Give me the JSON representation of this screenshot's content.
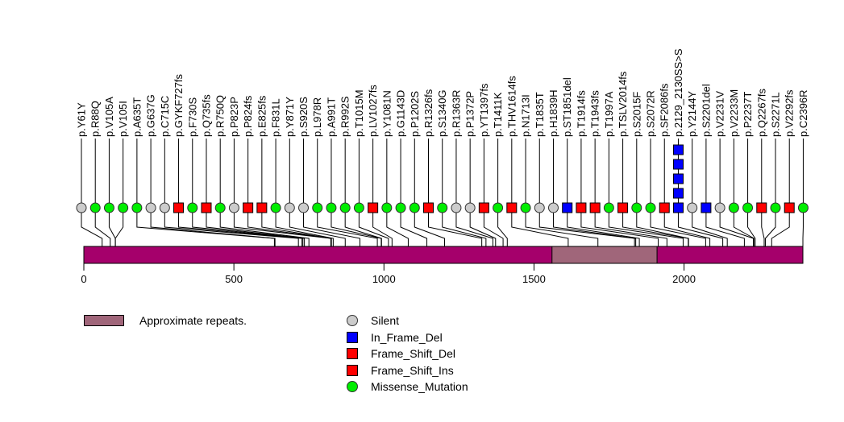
{
  "chart_data": {
    "type": "lollipop",
    "title": "",
    "xlabel": "",
    "ylabel": "",
    "protein_length": 2396,
    "xlim": [
      0,
      2396
    ],
    "x_ticks": [
      0,
      500,
      1000,
      1500,
      2000
    ],
    "x_tick_labels": [
      "0",
      "500",
      "1000",
      "1500",
      "2000"
    ],
    "domains": [
      {
        "name": "Approximate repeats.",
        "start": 1560,
        "end": 1910,
        "color": "#a0667a"
      }
    ],
    "protein_color": "#a5006b",
    "mutation_types": {
      "Silent": {
        "shape": "circle",
        "color": "#cccccc"
      },
      "In_Frame_Del": {
        "shape": "square",
        "color": "#0000ff"
      },
      "Frame_Shift_Del": {
        "shape": "square",
        "color": "#ff0000"
      },
      "Frame_Shift_Ins": {
        "shape": "square",
        "color": "#ff0000"
      },
      "Missense_Mutation": {
        "shape": "circle",
        "color": "#00ee00"
      }
    },
    "mutations": [
      {
        "label": "p.Y61Y",
        "pos": 61,
        "type": "Silent",
        "count": 1
      },
      {
        "label": "p.R88Q",
        "pos": 88,
        "type": "Missense_Mutation",
        "count": 1
      },
      {
        "label": "p.V105A",
        "pos": 105,
        "type": "Missense_Mutation",
        "count": 1
      },
      {
        "label": "p.V105I",
        "pos": 105,
        "type": "Missense_Mutation",
        "count": 1
      },
      {
        "label": "p.A635T",
        "pos": 635,
        "type": "Missense_Mutation",
        "count": 1
      },
      {
        "label": "p.G637G",
        "pos": 637,
        "type": "Silent",
        "count": 1
      },
      {
        "label": "p.C715C",
        "pos": 715,
        "type": "Silent",
        "count": 1
      },
      {
        "label": "p.GYKF727fs",
        "pos": 727,
        "type": "Frame_Shift_Del",
        "count": 1
      },
      {
        "label": "p.F730S",
        "pos": 730,
        "type": "Missense_Mutation",
        "count": 1
      },
      {
        "label": "p.Q735fs",
        "pos": 735,
        "type": "Frame_Shift_Del",
        "count": 1
      },
      {
        "label": "p.R750Q",
        "pos": 750,
        "type": "Missense_Mutation",
        "count": 1
      },
      {
        "label": "p.P823P",
        "pos": 823,
        "type": "Silent",
        "count": 1
      },
      {
        "label": "p.P824fs",
        "pos": 824,
        "type": "Frame_Shift_Del",
        "count": 1
      },
      {
        "label": "p.E825fs",
        "pos": 825,
        "type": "Frame_Shift_Del",
        "count": 1
      },
      {
        "label": "p.F831L",
        "pos": 831,
        "type": "Missense_Mutation",
        "count": 1
      },
      {
        "label": "p.Y871Y",
        "pos": 871,
        "type": "Silent",
        "count": 1
      },
      {
        "label": "p.S920S",
        "pos": 920,
        "type": "Silent",
        "count": 1
      },
      {
        "label": "p.L978R",
        "pos": 978,
        "type": "Missense_Mutation",
        "count": 1
      },
      {
        "label": "p.A991T",
        "pos": 991,
        "type": "Missense_Mutation",
        "count": 1
      },
      {
        "label": "p.R992S",
        "pos": 992,
        "type": "Missense_Mutation",
        "count": 1
      },
      {
        "label": "p.T1015M",
        "pos": 1015,
        "type": "Missense_Mutation",
        "count": 1
      },
      {
        "label": "p.LV1027fs",
        "pos": 1027,
        "type": "Frame_Shift_Del",
        "count": 1
      },
      {
        "label": "p.Y1081N",
        "pos": 1081,
        "type": "Missense_Mutation",
        "count": 1
      },
      {
        "label": "p.G1143D",
        "pos": 1143,
        "type": "Missense_Mutation",
        "count": 1
      },
      {
        "label": "p.P1202S",
        "pos": 1202,
        "type": "Missense_Mutation",
        "count": 1
      },
      {
        "label": "p.R1326fs",
        "pos": 1326,
        "type": "Frame_Shift_Del",
        "count": 1
      },
      {
        "label": "p.S1340G",
        "pos": 1340,
        "type": "Missense_Mutation",
        "count": 1
      },
      {
        "label": "p.R1363R",
        "pos": 1363,
        "type": "Silent",
        "count": 1
      },
      {
        "label": "p.P1372P",
        "pos": 1372,
        "type": "Silent",
        "count": 1
      },
      {
        "label": "p.YT1397fs",
        "pos": 1397,
        "type": "Frame_Shift_Del",
        "count": 1
      },
      {
        "label": "p.T1411K",
        "pos": 1411,
        "type": "Missense_Mutation",
        "count": 1
      },
      {
        "label": "p.THV1614fs",
        "pos": 1614,
        "type": "Frame_Shift_Del",
        "count": 1
      },
      {
        "label": "p.N1713I",
        "pos": 1713,
        "type": "Missense_Mutation",
        "count": 1
      },
      {
        "label": "p.T1835T",
        "pos": 1835,
        "type": "Silent",
        "count": 1
      },
      {
        "label": "p.H1839H",
        "pos": 1839,
        "type": "Silent",
        "count": 1
      },
      {
        "label": "p.ST1851del",
        "pos": 1851,
        "type": "In_Frame_Del",
        "count": 1
      },
      {
        "label": "p.T1914fs",
        "pos": 1914,
        "type": "Frame_Shift_Del",
        "count": 1
      },
      {
        "label": "p.T1943fs",
        "pos": 1943,
        "type": "Frame_Shift_Del",
        "count": 1
      },
      {
        "label": "p.T1997A",
        "pos": 1997,
        "type": "Missense_Mutation",
        "count": 1
      },
      {
        "label": "p.TSLV2014fs",
        "pos": 2014,
        "type": "Frame_Shift_Del",
        "count": 1
      },
      {
        "label": "p.S2015F",
        "pos": 2015,
        "type": "Missense_Mutation",
        "count": 1
      },
      {
        "label": "p.S2072R",
        "pos": 2072,
        "type": "Missense_Mutation",
        "count": 1
      },
      {
        "label": "p.SF2086fs",
        "pos": 2086,
        "type": "Frame_Shift_Del",
        "count": 1
      },
      {
        "label": "p.2129_2130SS>S",
        "pos": 2129,
        "type": "In_Frame_Del",
        "count": 5
      },
      {
        "label": "p.Y2144Y",
        "pos": 2144,
        "type": "Silent",
        "count": 1
      },
      {
        "label": "p.S2201del",
        "pos": 2201,
        "type": "In_Frame_Del",
        "count": 1
      },
      {
        "label": "p.V2231V",
        "pos": 2231,
        "type": "Silent",
        "count": 1
      },
      {
        "label": "p.V2233M",
        "pos": 2233,
        "type": "Missense_Mutation",
        "count": 1
      },
      {
        "label": "p.P2237T",
        "pos": 2237,
        "type": "Missense_Mutation",
        "count": 1
      },
      {
        "label": "p.Q2267fs",
        "pos": 2267,
        "type": "Frame_Shift_Del",
        "count": 1
      },
      {
        "label": "p.S2271L",
        "pos": 2271,
        "type": "Missense_Mutation",
        "count": 1
      },
      {
        "label": "p.V2292fs",
        "pos": 2292,
        "type": "Frame_Shift_Del",
        "count": 1
      },
      {
        "label": "p.C2396R",
        "pos": 2396,
        "type": "Missense_Mutation",
        "count": 1
      }
    ],
    "legend": {
      "domain_items": [
        {
          "label": "Approximate repeats.",
          "color": "#a0667a"
        }
      ],
      "mutation_items": [
        {
          "label": "Silent",
          "shape": "circle",
          "color": "#cccccc"
        },
        {
          "label": "In_Frame_Del",
          "shape": "square",
          "color": "#0000ff"
        },
        {
          "label": "Frame_Shift_Del",
          "shape": "square",
          "color": "#ff0000"
        },
        {
          "label": "Frame_Shift_Ins",
          "shape": "square",
          "color": "#ff0000"
        },
        {
          "label": "Missense_Mutation",
          "shape": "circle",
          "color": "#00ee00"
        }
      ],
      "placement": "bottom"
    }
  }
}
